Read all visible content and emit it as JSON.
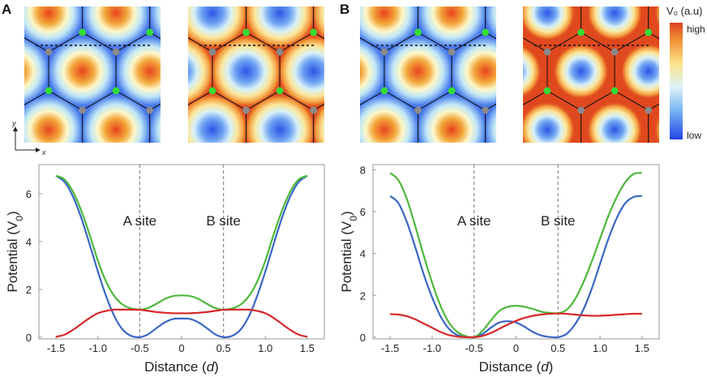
{
  "panels": {
    "a": "A",
    "b": "B"
  },
  "colorbar": {
    "title": "V₀ (a.u)",
    "high": "high",
    "low": "low"
  },
  "axis_hint": {
    "y": "y",
    "x": "x"
  },
  "colors": {
    "blue": "#3a66c4",
    "green": "#4db83a",
    "red": "#d8282b",
    "site_green": "#33dd33",
    "site_gray": "#8a8a8a"
  },
  "heatmaps": [
    {
      "bg": "blue",
      "spots": "red"
    },
    {
      "bg": "red",
      "spots": "blue"
    },
    {
      "bg": "blue",
      "spots": "red"
    },
    {
      "bg": "red",
      "spots": "blue_small"
    }
  ],
  "chart_data": [
    {
      "type": "line",
      "xlabel": "Distance (d)",
      "ylabel": "Potential (V0)",
      "xlim": [
        -1.5,
        1.5
      ],
      "ylim": [
        0,
        7
      ],
      "x_ticks": [
        "-1.5",
        "-1.0",
        "-0.5",
        "0",
        "0.5",
        "1.0",
        "1.5"
      ],
      "y_ticks": [
        "0",
        "2",
        "4",
        "6"
      ],
      "annotations": [
        "A site",
        "B site"
      ],
      "vlines": [
        -0.5,
        0.5
      ],
      "x": [
        -1.5,
        -1.4,
        -1.3,
        -1.2,
        -1.1,
        -1.0,
        -0.9,
        -0.8,
        -0.7,
        -0.6,
        -0.5,
        -0.4,
        -0.3,
        -0.2,
        -0.1,
        0,
        0.1,
        0.2,
        0.3,
        0.4,
        0.5,
        0.6,
        0.7,
        0.8,
        0.9,
        1.0,
        1.1,
        1.2,
        1.3,
        1.4,
        1.5
      ],
      "series": [
        {
          "color": "blue",
          "values": [
            6.75,
            6.5,
            5.9,
            5.0,
            3.9,
            2.75,
            1.7,
            0.85,
            0.3,
            0.05,
            0.0,
            0.12,
            0.38,
            0.62,
            0.76,
            0.78,
            0.76,
            0.62,
            0.38,
            0.12,
            0.0,
            0.05,
            0.3,
            0.85,
            1.7,
            2.75,
            3.9,
            5.0,
            5.9,
            6.5,
            6.75
          ]
        },
        {
          "color": "green",
          "values": [
            6.75,
            6.6,
            6.1,
            5.3,
            4.3,
            3.2,
            2.3,
            1.7,
            1.35,
            1.2,
            1.15,
            1.22,
            1.4,
            1.6,
            1.72,
            1.75,
            1.72,
            1.6,
            1.4,
            1.22,
            1.15,
            1.2,
            1.35,
            1.7,
            2.3,
            3.2,
            4.3,
            5.3,
            6.1,
            6.6,
            6.75
          ]
        },
        {
          "color": "red",
          "values": [
            0.02,
            0.1,
            0.3,
            0.55,
            0.8,
            1.0,
            1.1,
            1.15,
            1.15,
            1.15,
            1.14,
            1.1,
            1.05,
            1.02,
            1.0,
            1.0,
            1.0,
            1.02,
            1.05,
            1.1,
            1.14,
            1.15,
            1.15,
            1.15,
            1.1,
            1.0,
            0.8,
            0.55,
            0.3,
            0.1,
            0.02
          ]
        }
      ]
    },
    {
      "type": "line",
      "xlabel": "Distance (d)",
      "ylabel": "Potential (V0)",
      "xlim": [
        -1.5,
        1.5
      ],
      "ylim": [
        0,
        8
      ],
      "x_ticks": [
        "-1.5",
        "-1.0",
        "-0.5",
        "0",
        "0.5",
        "1.0",
        "1.5"
      ],
      "y_ticks": [
        "0",
        "2",
        "4",
        "6",
        "8"
      ],
      "annotations": [
        "A site",
        "B site"
      ],
      "vlines": [
        -0.5,
        0.5
      ],
      "x": [
        -1.5,
        -1.4,
        -1.3,
        -1.2,
        -1.1,
        -1.0,
        -0.9,
        -0.8,
        -0.7,
        -0.6,
        -0.5,
        -0.4,
        -0.3,
        -0.2,
        -0.1,
        0,
        0.1,
        0.2,
        0.3,
        0.4,
        0.5,
        0.6,
        0.7,
        0.8,
        0.9,
        1.0,
        1.1,
        1.2,
        1.3,
        1.4,
        1.5
      ],
      "series": [
        {
          "color": "blue",
          "values": [
            6.75,
            6.4,
            5.5,
            4.3,
            3.0,
            1.9,
            1.0,
            0.4,
            0.1,
            0.02,
            0.0,
            0.15,
            0.45,
            0.7,
            0.76,
            0.7,
            0.5,
            0.25,
            0.08,
            0.01,
            0.0,
            0.15,
            0.6,
            1.3,
            2.3,
            3.5,
            4.7,
            5.7,
            6.4,
            6.7,
            6.75
          ]
        },
        {
          "color": "green",
          "values": [
            7.85,
            7.5,
            6.6,
            5.3,
            3.9,
            2.6,
            1.5,
            0.7,
            0.25,
            0.05,
            0.0,
            0.3,
            0.8,
            1.25,
            1.45,
            1.5,
            1.45,
            1.35,
            1.22,
            1.16,
            1.15,
            1.3,
            1.8,
            2.6,
            3.6,
            4.7,
            5.8,
            6.7,
            7.4,
            7.8,
            7.85
          ]
        },
        {
          "color": "red",
          "values": [
            1.1,
            1.08,
            1.0,
            0.85,
            0.65,
            0.45,
            0.25,
            0.1,
            0.03,
            0.0,
            0.0,
            0.06,
            0.2,
            0.4,
            0.6,
            0.78,
            0.92,
            1.02,
            1.08,
            1.12,
            1.13,
            1.12,
            1.08,
            1.04,
            1.02,
            1.02,
            1.04,
            1.07,
            1.1,
            1.12,
            1.12
          ]
        }
      ]
    }
  ]
}
